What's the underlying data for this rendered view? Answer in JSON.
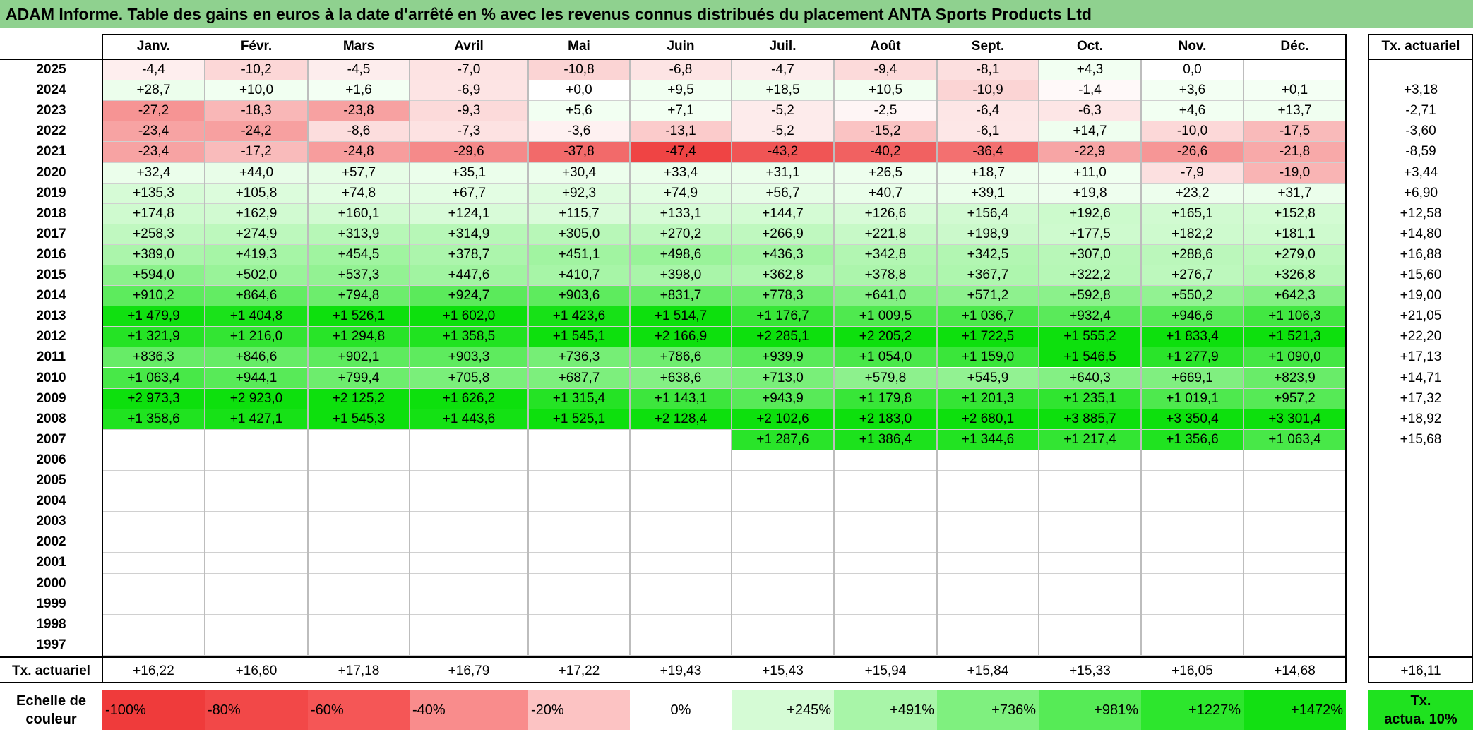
{
  "title": "ADAM Informe. Table des gains en euros à la date d'arrêté en % avec les revenus connus distribués du placement ANTA Sports Products Ltd",
  "months": [
    "Janv.",
    "Févr.",
    "Mars",
    "Avril",
    "Mai",
    "Juin",
    "Juil.",
    "Août",
    "Sept.",
    "Oct.",
    "Nov.",
    "Déc."
  ],
  "rate_header": "Tx. actuariel",
  "rows": [
    {
      "year": "2025",
      "values": [
        "-4,4",
        "-10,2",
        "-4,5",
        "-7,0",
        "-10,8",
        "-6,8",
        "-4,7",
        "-9,4",
        "-8,1",
        "+4,3",
        "0,0",
        ""
      ],
      "rate": ""
    },
    {
      "year": "2024",
      "values": [
        "+28,7",
        "+10,0",
        "+1,6",
        "-6,9",
        "+0,0",
        "+9,5",
        "+18,5",
        "+10,5",
        "-10,9",
        "-1,4",
        "+3,6",
        "+0,1"
      ],
      "rate": "+3,18"
    },
    {
      "year": "2023",
      "values": [
        "-27,2",
        "-18,3",
        "-23,8",
        "-9,3",
        "+5,6",
        "+7,1",
        "-5,2",
        "-2,5",
        "-6,4",
        "-6,3",
        "+4,6",
        "+13,7"
      ],
      "rate": "-2,71"
    },
    {
      "year": "2022",
      "values": [
        "-23,4",
        "-24,2",
        "-8,6",
        "-7,3",
        "-3,6",
        "-13,1",
        "-5,2",
        "-15,2",
        "-6,1",
        "+14,7",
        "-10,0",
        "-17,5"
      ],
      "rate": "-3,60"
    },
    {
      "year": "2021",
      "values": [
        "-23,4",
        "-17,2",
        "-24,8",
        "-29,6",
        "-37,8",
        "-47,4",
        "-43,2",
        "-40,2",
        "-36,4",
        "-22,9",
        "-26,6",
        "-21,8"
      ],
      "rate": "-8,59"
    },
    {
      "year": "2020",
      "values": [
        "+32,4",
        "+44,0",
        "+57,7",
        "+35,1",
        "+30,4",
        "+33,4",
        "+31,1",
        "+26,5",
        "+18,7",
        "+11,0",
        "-7,9",
        "-19,0"
      ],
      "rate": "+3,44"
    },
    {
      "year": "2019",
      "values": [
        "+135,3",
        "+105,8",
        "+74,8",
        "+67,7",
        "+92,3",
        "+74,9",
        "+56,7",
        "+40,7",
        "+39,1",
        "+19,8",
        "+23,2",
        "+31,7"
      ],
      "rate": "+6,90"
    },
    {
      "year": "2018",
      "values": [
        "+174,8",
        "+162,9",
        "+160,1",
        "+124,1",
        "+115,7",
        "+133,1",
        "+144,7",
        "+126,6",
        "+156,4",
        "+192,6",
        "+165,1",
        "+152,8"
      ],
      "rate": "+12,58"
    },
    {
      "year": "2017",
      "values": [
        "+258,3",
        "+274,9",
        "+313,9",
        "+314,9",
        "+305,0",
        "+270,2",
        "+266,9",
        "+221,8",
        "+198,9",
        "+177,5",
        "+182,2",
        "+181,1"
      ],
      "rate": "+14,80"
    },
    {
      "year": "2016",
      "values": [
        "+389,0",
        "+419,3",
        "+454,5",
        "+378,7",
        "+451,1",
        "+498,6",
        "+436,3",
        "+342,8",
        "+342,5",
        "+307,0",
        "+288,6",
        "+279,0"
      ],
      "rate": "+16,88"
    },
    {
      "year": "2015",
      "values": [
        "+594,0",
        "+502,0",
        "+537,3",
        "+447,6",
        "+410,7",
        "+398,0",
        "+362,8",
        "+378,8",
        "+367,7",
        "+322,2",
        "+276,7",
        "+326,8"
      ],
      "rate": "+15,60"
    },
    {
      "year": "2014",
      "values": [
        "+910,2",
        "+864,6",
        "+794,8",
        "+924,7",
        "+903,6",
        "+831,7",
        "+778,3",
        "+641,0",
        "+571,2",
        "+592,8",
        "+550,2",
        "+642,3"
      ],
      "rate": "+19,00"
    },
    {
      "year": "2013",
      "values": [
        "+1 479,9",
        "+1 404,8",
        "+1 526,1",
        "+1 602,0",
        "+1 423,6",
        "+1 514,7",
        "+1 176,7",
        "+1 009,5",
        "+1 036,7",
        "+932,4",
        "+946,6",
        "+1 106,3"
      ],
      "rate": "+21,05"
    },
    {
      "year": "2012",
      "values": [
        "+1 321,9",
        "+1 216,0",
        "+1 294,8",
        "+1 358,5",
        "+1 545,1",
        "+2 166,9",
        "+2 285,1",
        "+2 205,2",
        "+1 722,5",
        "+1 555,2",
        "+1 833,4",
        "+1 521,3"
      ],
      "rate": "+22,20"
    },
    {
      "year": "2011",
      "values": [
        "+836,3",
        "+846,6",
        "+902,1",
        "+903,3",
        "+736,3",
        "+786,6",
        "+939,9",
        "+1 054,0",
        "+1 159,0",
        "+1 546,5",
        "+1 277,9",
        "+1 090,0"
      ],
      "rate": "+17,13"
    },
    {
      "year": "2010",
      "values": [
        "+1 063,4",
        "+944,1",
        "+799,4",
        "+705,8",
        "+687,7",
        "+638,6",
        "+713,0",
        "+579,8",
        "+545,9",
        "+640,3",
        "+669,1",
        "+823,9"
      ],
      "rate": "+14,71"
    },
    {
      "year": "2009",
      "values": [
        "+2 973,3",
        "+2 923,0",
        "+2 125,2",
        "+1 626,2",
        "+1 315,4",
        "+1 143,1",
        "+943,9",
        "+1 179,8",
        "+1 201,3",
        "+1 235,1",
        "+1 019,1",
        "+957,2"
      ],
      "rate": "+17,32"
    },
    {
      "year": "2008",
      "values": [
        "+1 358,6",
        "+1 427,1",
        "+1 545,3",
        "+1 443,6",
        "+1 525,1",
        "+2 128,4",
        "+2 102,6",
        "+2 183,0",
        "+2 680,1",
        "+3 885,7",
        "+3 350,4",
        "+3 301,4"
      ],
      "rate": "+18,92"
    },
    {
      "year": "2007",
      "values": [
        "",
        "",
        "",
        "",
        "",
        "",
        "+1 287,6",
        "+1 386,4",
        "+1 344,6",
        "+1 217,4",
        "+1 356,6",
        "+1 063,4"
      ],
      "rate": "+15,68"
    },
    {
      "year": "2006",
      "values": [
        "",
        "",
        "",
        "",
        "",
        "",
        "",
        "",
        "",
        "",
        "",
        ""
      ],
      "rate": ""
    },
    {
      "year": "2005",
      "values": [
        "",
        "",
        "",
        "",
        "",
        "",
        "",
        "",
        "",
        "",
        "",
        ""
      ],
      "rate": ""
    },
    {
      "year": "2004",
      "values": [
        "",
        "",
        "",
        "",
        "",
        "",
        "",
        "",
        "",
        "",
        "",
        ""
      ],
      "rate": ""
    },
    {
      "year": "2003",
      "values": [
        "",
        "",
        "",
        "",
        "",
        "",
        "",
        "",
        "",
        "",
        "",
        ""
      ],
      "rate": ""
    },
    {
      "year": "2002",
      "values": [
        "",
        "",
        "",
        "",
        "",
        "",
        "",
        "",
        "",
        "",
        "",
        ""
      ],
      "rate": ""
    },
    {
      "year": "2001",
      "values": [
        "",
        "",
        "",
        "",
        "",
        "",
        "",
        "",
        "",
        "",
        "",
        ""
      ],
      "rate": ""
    },
    {
      "year": "2000",
      "values": [
        "",
        "",
        "",
        "",
        "",
        "",
        "",
        "",
        "",
        "",
        "",
        ""
      ],
      "rate": ""
    },
    {
      "year": "1999",
      "values": [
        "",
        "",
        "",
        "",
        "",
        "",
        "",
        "",
        "",
        "",
        "",
        ""
      ],
      "rate": ""
    },
    {
      "year": "1998",
      "values": [
        "",
        "",
        "",
        "",
        "",
        "",
        "",
        "",
        "",
        "",
        "",
        ""
      ],
      "rate": ""
    },
    {
      "year": "1997",
      "values": [
        "",
        "",
        "",
        "",
        "",
        "",
        "",
        "",
        "",
        "",
        "",
        ""
      ],
      "rate": ""
    }
  ],
  "footer": {
    "label": "Tx. actuariel",
    "values": [
      "+16,22",
      "+16,60",
      "+17,18",
      "+16,79",
      "+17,22",
      "+19,43",
      "+15,43",
      "+15,94",
      "+15,84",
      "+15,33",
      "+16,05",
      "+14,68"
    ],
    "total": "+16,11"
  },
  "scale": {
    "label_line1": "Echelle de",
    "label_line2": "couleur",
    "steps": [
      {
        "text": "-100%",
        "color": "#ef3b3b",
        "align": "left"
      },
      {
        "text": "-80%",
        "color": "#f24848",
        "align": "left"
      },
      {
        "text": "-60%",
        "color": "#f55656",
        "align": "left"
      },
      {
        "text": "-40%",
        "color": "#f98c8c",
        "align": "left"
      },
      {
        "text": "-20%",
        "color": "#fcc3c3",
        "align": "left"
      },
      {
        "text": "0%",
        "color": "#ffffff",
        "align": "center"
      },
      {
        "text": "+245%",
        "color": "#d5fbd5",
        "align": "right"
      },
      {
        "text": "+491%",
        "color": "#a8f5a8",
        "align": "right"
      },
      {
        "text": "+736%",
        "color": "#7ff07f",
        "align": "right"
      },
      {
        "text": "+981%",
        "color": "#56eb56",
        "align": "right"
      },
      {
        "text": "+1227%",
        "color": "#2de62d",
        "align": "right"
      },
      {
        "text": "+1472%",
        "color": "#12e012",
        "align": "right"
      }
    ],
    "side_line1": "Tx.",
    "side_line2": "actua. 10%",
    "side_color": "#1fe21f"
  }
}
